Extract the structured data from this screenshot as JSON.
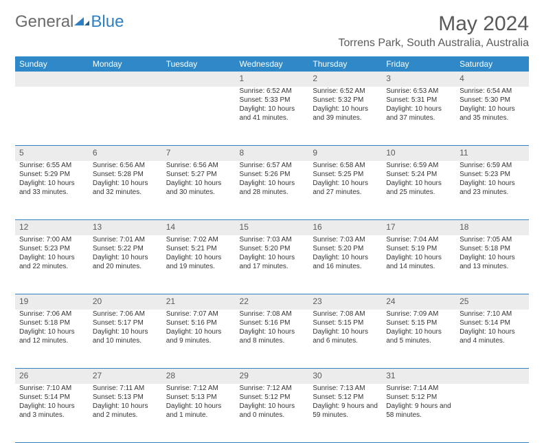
{
  "logo": {
    "general": "General",
    "blue": "Blue"
  },
  "header": {
    "month_title": "May 2024",
    "location": "Torrens Park, South Australia, Australia"
  },
  "styles": {
    "header_bg": "#2f89c9",
    "header_fg": "#ffffff",
    "daynum_bg": "#ececec",
    "daynum_fg": "#5a5a5a",
    "rule_color": "#2f7fc3",
    "body_font_size": 10,
    "daynum_font_size": 12,
    "th_font_size": 12,
    "month_title_font_size": 30,
    "location_font_size": 16
  },
  "days": [
    "Sunday",
    "Monday",
    "Tuesday",
    "Wednesday",
    "Thursday",
    "Friday",
    "Saturday"
  ],
  "weeks": [
    [
      null,
      null,
      null,
      {
        "n": "1",
        "sr": "Sunrise: 6:52 AM",
        "ss": "Sunset: 5:33 PM",
        "dl": "Daylight: 10 hours and 41 minutes."
      },
      {
        "n": "2",
        "sr": "Sunrise: 6:52 AM",
        "ss": "Sunset: 5:32 PM",
        "dl": "Daylight: 10 hours and 39 minutes."
      },
      {
        "n": "3",
        "sr": "Sunrise: 6:53 AM",
        "ss": "Sunset: 5:31 PM",
        "dl": "Daylight: 10 hours and 37 minutes."
      },
      {
        "n": "4",
        "sr": "Sunrise: 6:54 AM",
        "ss": "Sunset: 5:30 PM",
        "dl": "Daylight: 10 hours and 35 minutes."
      }
    ],
    [
      {
        "n": "5",
        "sr": "Sunrise: 6:55 AM",
        "ss": "Sunset: 5:29 PM",
        "dl": "Daylight: 10 hours and 33 minutes."
      },
      {
        "n": "6",
        "sr": "Sunrise: 6:56 AM",
        "ss": "Sunset: 5:28 PM",
        "dl": "Daylight: 10 hours and 32 minutes."
      },
      {
        "n": "7",
        "sr": "Sunrise: 6:56 AM",
        "ss": "Sunset: 5:27 PM",
        "dl": "Daylight: 10 hours and 30 minutes."
      },
      {
        "n": "8",
        "sr": "Sunrise: 6:57 AM",
        "ss": "Sunset: 5:26 PM",
        "dl": "Daylight: 10 hours and 28 minutes."
      },
      {
        "n": "9",
        "sr": "Sunrise: 6:58 AM",
        "ss": "Sunset: 5:25 PM",
        "dl": "Daylight: 10 hours and 27 minutes."
      },
      {
        "n": "10",
        "sr": "Sunrise: 6:59 AM",
        "ss": "Sunset: 5:24 PM",
        "dl": "Daylight: 10 hours and 25 minutes."
      },
      {
        "n": "11",
        "sr": "Sunrise: 6:59 AM",
        "ss": "Sunset: 5:23 PM",
        "dl": "Daylight: 10 hours and 23 minutes."
      }
    ],
    [
      {
        "n": "12",
        "sr": "Sunrise: 7:00 AM",
        "ss": "Sunset: 5:23 PM",
        "dl": "Daylight: 10 hours and 22 minutes."
      },
      {
        "n": "13",
        "sr": "Sunrise: 7:01 AM",
        "ss": "Sunset: 5:22 PM",
        "dl": "Daylight: 10 hours and 20 minutes."
      },
      {
        "n": "14",
        "sr": "Sunrise: 7:02 AM",
        "ss": "Sunset: 5:21 PM",
        "dl": "Daylight: 10 hours and 19 minutes."
      },
      {
        "n": "15",
        "sr": "Sunrise: 7:03 AM",
        "ss": "Sunset: 5:20 PM",
        "dl": "Daylight: 10 hours and 17 minutes."
      },
      {
        "n": "16",
        "sr": "Sunrise: 7:03 AM",
        "ss": "Sunset: 5:20 PM",
        "dl": "Daylight: 10 hours and 16 minutes."
      },
      {
        "n": "17",
        "sr": "Sunrise: 7:04 AM",
        "ss": "Sunset: 5:19 PM",
        "dl": "Daylight: 10 hours and 14 minutes."
      },
      {
        "n": "18",
        "sr": "Sunrise: 7:05 AM",
        "ss": "Sunset: 5:18 PM",
        "dl": "Daylight: 10 hours and 13 minutes."
      }
    ],
    [
      {
        "n": "19",
        "sr": "Sunrise: 7:06 AM",
        "ss": "Sunset: 5:18 PM",
        "dl": "Daylight: 10 hours and 12 minutes."
      },
      {
        "n": "20",
        "sr": "Sunrise: 7:06 AM",
        "ss": "Sunset: 5:17 PM",
        "dl": "Daylight: 10 hours and 10 minutes."
      },
      {
        "n": "21",
        "sr": "Sunrise: 7:07 AM",
        "ss": "Sunset: 5:16 PM",
        "dl": "Daylight: 10 hours and 9 minutes."
      },
      {
        "n": "22",
        "sr": "Sunrise: 7:08 AM",
        "ss": "Sunset: 5:16 PM",
        "dl": "Daylight: 10 hours and 8 minutes."
      },
      {
        "n": "23",
        "sr": "Sunrise: 7:08 AM",
        "ss": "Sunset: 5:15 PM",
        "dl": "Daylight: 10 hours and 6 minutes."
      },
      {
        "n": "24",
        "sr": "Sunrise: 7:09 AM",
        "ss": "Sunset: 5:15 PM",
        "dl": "Daylight: 10 hours and 5 minutes."
      },
      {
        "n": "25",
        "sr": "Sunrise: 7:10 AM",
        "ss": "Sunset: 5:14 PM",
        "dl": "Daylight: 10 hours and 4 minutes."
      }
    ],
    [
      {
        "n": "26",
        "sr": "Sunrise: 7:10 AM",
        "ss": "Sunset: 5:14 PM",
        "dl": "Daylight: 10 hours and 3 minutes."
      },
      {
        "n": "27",
        "sr": "Sunrise: 7:11 AM",
        "ss": "Sunset: 5:13 PM",
        "dl": "Daylight: 10 hours and 2 minutes."
      },
      {
        "n": "28",
        "sr": "Sunrise: 7:12 AM",
        "ss": "Sunset: 5:13 PM",
        "dl": "Daylight: 10 hours and 1 minute."
      },
      {
        "n": "29",
        "sr": "Sunrise: 7:12 AM",
        "ss": "Sunset: 5:12 PM",
        "dl": "Daylight: 10 hours and 0 minutes."
      },
      {
        "n": "30",
        "sr": "Sunrise: 7:13 AM",
        "ss": "Sunset: 5:12 PM",
        "dl": "Daylight: 9 hours and 59 minutes."
      },
      {
        "n": "31",
        "sr": "Sunrise: 7:14 AM",
        "ss": "Sunset: 5:12 PM",
        "dl": "Daylight: 9 hours and 58 minutes."
      },
      null
    ]
  ]
}
